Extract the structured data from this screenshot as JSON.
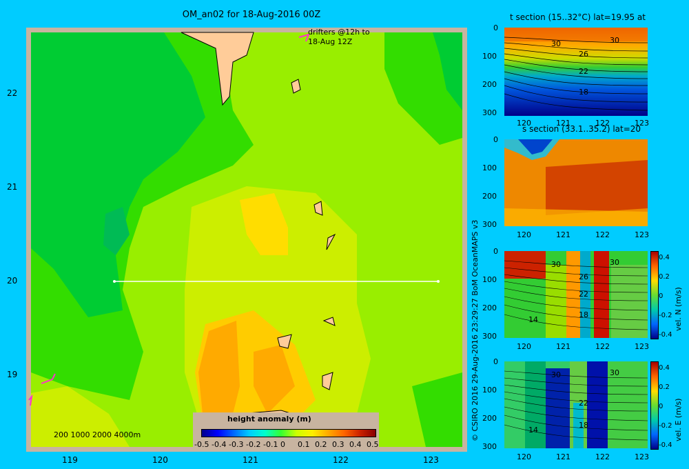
{
  "map": {
    "title": "OM_an02 for 18-Aug-2016 00Z",
    "drifter_label_1": "drifters @12h to",
    "drifter_label_2": "18-Aug 12Z",
    "depth_contours_label": "200  1000  2000  4000m",
    "colorbar_title": "height anomaly (m)",
    "colorbar_ticks": [
      "-0.5",
      "-0.4",
      "-0.3",
      "-0.2",
      "-0.1",
      "0",
      "0.1",
      "0.2",
      "0.3",
      "0.4",
      "0.5"
    ],
    "x_ticks": [
      "119",
      "120",
      "121",
      "122",
      "123"
    ],
    "y_ticks": [
      "22",
      "21",
      "20",
      "19"
    ],
    "colors": {
      "green_dark": "#00cc33",
      "green": "#33dd00",
      "yellow_green": "#99ee00",
      "yellow": "#ccee00",
      "orange_light": "#ffcc00",
      "orange": "#ffaa00",
      "land": "#ffcc99",
      "frame": "#c8b4a0"
    }
  },
  "credit": "© CSIRO 2016   29-Aug-2016 23:29:27 BoM OceanMAPS v3",
  "panels": [
    {
      "title": "t section (15..32°C) lat=19.95 at",
      "y_ticks": [
        "0",
        "100",
        "200",
        "300"
      ],
      "x_ticks": [
        "120",
        "121",
        "122",
        "123"
      ],
      "contour_labels": [
        "30",
        "26",
        "22",
        "18"
      ]
    },
    {
      "title": "s section (33.1..35.2) lat=20",
      "y_ticks": [
        "0",
        "100",
        "200",
        "300"
      ],
      "x_ticks": [
        "120",
        "121",
        "122",
        "123"
      ]
    },
    {
      "y_ticks": [
        "0",
        "100",
        "200",
        "300"
      ],
      "x_ticks": [
        "120",
        "121",
        "122",
        "123"
      ],
      "contour_labels": [
        "30",
        "30",
        "26",
        "22",
        "18",
        "14"
      ],
      "cbar_ticks": [
        "0.4",
        "0.2",
        "0",
        "-0.2",
        "-0.4"
      ],
      "cbar_label": "vel. N (m/s)"
    },
    {
      "y_ticks": [
        "0",
        "100",
        "200",
        "300"
      ],
      "x_ticks": [
        "120",
        "121",
        "122",
        "123"
      ],
      "contour_labels": [
        "30",
        "30",
        "22",
        "18",
        "14"
      ],
      "cbar_ticks": [
        "0.4",
        "0.2",
        "0",
        "-0.2",
        "-0.4"
      ],
      "cbar_label": "vel. E (m/s)"
    }
  ]
}
